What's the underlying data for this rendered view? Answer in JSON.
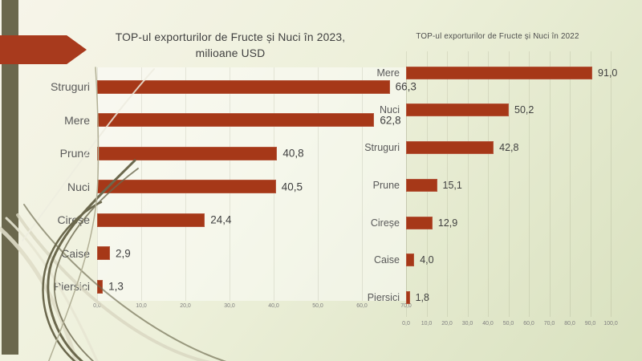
{
  "theme": {
    "background_start": "#f7f5ea",
    "background_mid": "#edf0da",
    "background_end": "#d9e1bf",
    "sidebar_color": "#6b684d",
    "arrow_color": "#a83a1d",
    "bar_color": "#a63818",
    "title_color": "#404040",
    "label_color": "#595959",
    "tick_color": "#7f7f7f"
  },
  "chart_data": [
    {
      "type": "bar",
      "orientation": "horizontal",
      "title": "TOP-ul exporturilor de Fructe și Nuci în 2023, milioane USD",
      "categories": [
        "Struguri",
        "Mere",
        "Prune",
        "Nuci",
        "Cireșe",
        "Caise",
        "Piersici"
      ],
      "values": [
        66.3,
        62.8,
        40.8,
        40.5,
        24.4,
        2.9,
        1.3
      ],
      "value_labels": [
        "66,3",
        "62,8",
        "40,8",
        "40,5",
        "24,4",
        "2,9",
        "1,3"
      ],
      "xlim": [
        0,
        70
      ],
      "tick_labels": [
        "0,0",
        "10,0",
        "20,0",
        "30,0",
        "40,0",
        "50,0",
        "60,0",
        "70,0"
      ],
      "grid": "vertical",
      "legend": "none"
    },
    {
      "type": "bar",
      "orientation": "horizontal",
      "title": "TOP-ul exporturilor de Fructe și Nuci în 2022",
      "categories": [
        "Mere",
        "Nuci",
        "Struguri",
        "Prune",
        "Cireșe",
        "Caise",
        "Piersici"
      ],
      "values": [
        91.0,
        50.2,
        42.8,
        15.1,
        12.9,
        4.0,
        1.8
      ],
      "value_labels": [
        "91,0",
        "50,2",
        "42,8",
        "15,1",
        "12,9",
        "4,0",
        "1,8"
      ],
      "xlim": [
        0,
        100
      ],
      "tick_labels": [
        "0,0",
        "10,0",
        "20,0",
        "30,0",
        "40,0",
        "50,0",
        "60,0",
        "70,0",
        "80,0",
        "90,0",
        "100,0"
      ],
      "grid": "vertical",
      "legend": "none"
    }
  ]
}
